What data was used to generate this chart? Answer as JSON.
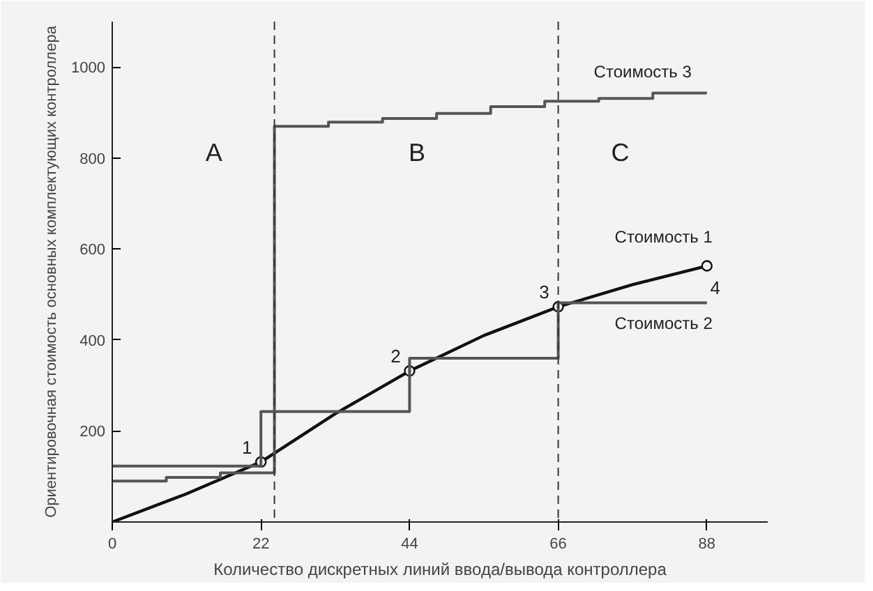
{
  "chart_data": {
    "type": "line",
    "xlabel": "Количество дискретных линий ввода/вывода контроллера",
    "ylabel": "Ориентировочная стоимость основных комплектующих контроллера",
    "xlim": [
      0,
      97
    ],
    "ylim": [
      0,
      1100
    ],
    "xticks": [
      0,
      22,
      44,
      66,
      88
    ],
    "yticks": [
      200,
      400,
      600,
      800,
      1000
    ],
    "grid": false,
    "series": [
      {
        "name": "Стоимость 1",
        "color": "#111111",
        "x": [
          0,
          11,
          22,
          33,
          44,
          55,
          66,
          77,
          88
        ],
        "values": [
          0,
          62,
          132,
          238,
          332,
          410,
          473,
          522,
          563
        ]
      },
      {
        "type": "scatter",
        "marker": "circle",
        "color": "#111111",
        "x": [
          22,
          44,
          66,
          88
        ],
        "values": [
          132,
          332,
          473,
          563
        ]
      },
      {
        "name": "Стоимость 2",
        "type": "step",
        "color": "#555555",
        "x": [
          0,
          22,
          44,
          66,
          88
        ],
        "values": [
          123,
          243,
          360,
          482,
          482
        ]
      },
      {
        "name": "Стоимость 3",
        "type": "step",
        "color": "#555555",
        "x": [
          0,
          8,
          16,
          24,
          32,
          40,
          48,
          56,
          64,
          72,
          80,
          88
        ],
        "values": [
          90,
          98,
          108,
          870,
          879,
          887,
          898,
          913,
          925,
          931,
          943,
          943
        ]
      }
    ],
    "ref_lines": [
      {
        "axis": "x",
        "value": 24,
        "line_style": "dashed",
        "color": "#333333"
      },
      {
        "axis": "x",
        "value": 66,
        "line_style": "dashed",
        "color": "#333333"
      }
    ],
    "annotations": [
      {
        "text": "1",
        "x": 22,
        "y": 132
      },
      {
        "text": "2",
        "x": 44,
        "y": 332
      },
      {
        "text": "3",
        "x": 66,
        "y": 473
      },
      {
        "text": "4",
        "x": 88,
        "y": 563
      },
      "A",
      "B",
      "C"
    ]
  }
}
